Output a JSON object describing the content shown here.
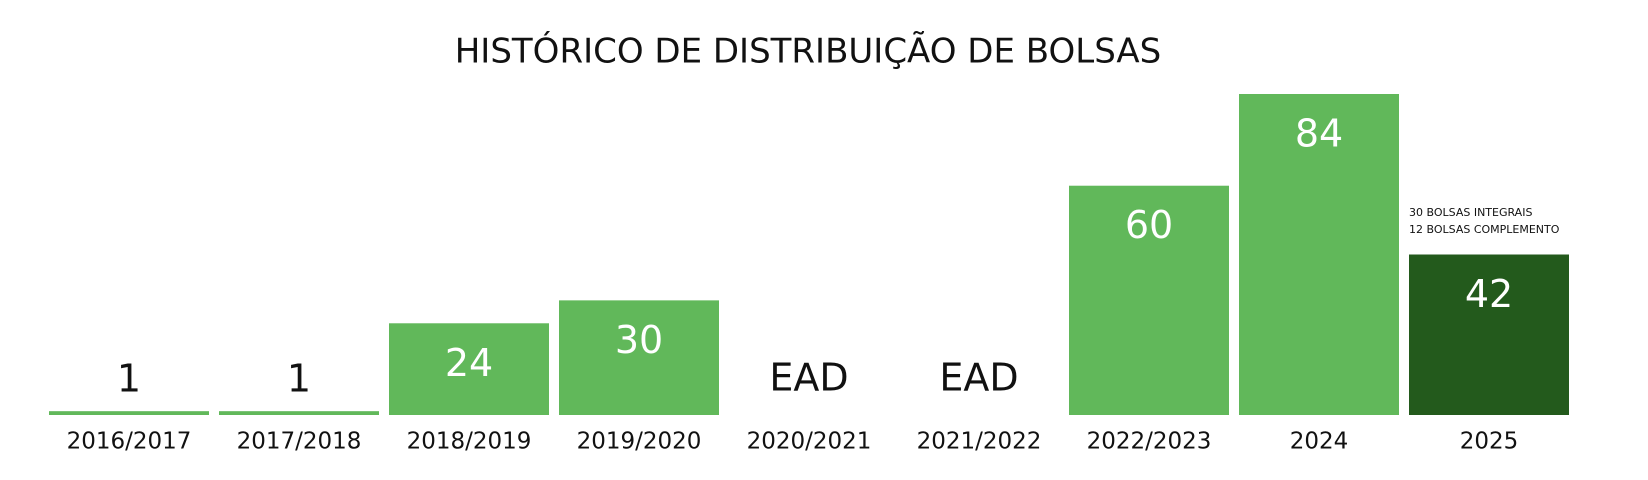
{
  "chart_data": {
    "type": "bar",
    "title": "HISTÓRICO DE DISTRIBUIÇÃO DE BOLSAS",
    "categories": [
      "2016/2017",
      "2017/2018",
      "2018/2019",
      "2019/2020",
      "2020/2021",
      "2021/2022",
      "2022/2023",
      "2024",
      "2025"
    ],
    "values": [
      1,
      1,
      24,
      30,
      null,
      null,
      60,
      84,
      42
    ],
    "value_labels": [
      "1",
      "1",
      "24",
      "30",
      "EAD",
      "EAD",
      "60",
      "84",
      "42"
    ],
    "colors": [
      "#61b85a",
      "#61b85a",
      "#61b85a",
      "#61b85a",
      "#61b85a",
      "#61b85a",
      "#61b85a",
      "#61b85a",
      "#235a1c"
    ],
    "annotations": [
      "30 BOLSAS INTEGRAIS",
      "12 BOLSAS COMPLEMENTO"
    ]
  }
}
